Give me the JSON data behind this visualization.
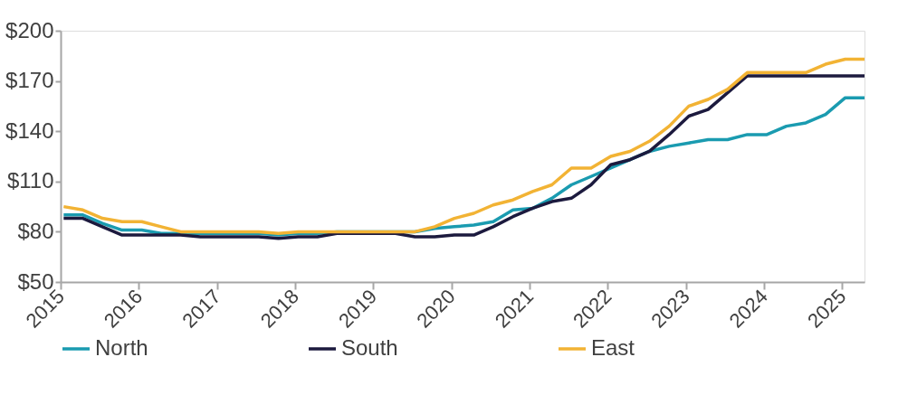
{
  "chart_data": {
    "type": "line",
    "x": [
      "2015-01-15",
      "2015-04-15",
      "2015-07-15",
      "2015-10-15",
      "2016-01-15",
      "2016-04-15",
      "2016-07-15",
      "2016-10-15",
      "2017-01-15",
      "2017-04-15",
      "2017-07-15",
      "2017-10-15",
      "2018-01-15",
      "2018-04-15",
      "2018-07-15",
      "2018-10-15",
      "2019-01-15",
      "2019-04-15",
      "2019-07-15",
      "2019-10-15",
      "2020-01-15",
      "2020-04-15",
      "2020-07-15",
      "2020-10-15",
      "2021-01-15",
      "2021-04-15",
      "2021-07-15",
      "2021-10-15",
      "2022-01-15",
      "2022-04-15",
      "2022-07-15",
      "2022-10-15",
      "2023-01-15",
      "2023-04-15",
      "2023-07-15",
      "2023-10-15",
      "2024-01-15",
      "2024-04-15",
      "2024-07-15",
      "2024-10-15",
      "2025-01-15",
      "2025-04-15"
    ],
    "series": [
      {
        "name": "North",
        "color": "#1a9bb0",
        "values": [
          90,
          90,
          85,
          81,
          81,
          79,
          79,
          79,
          79,
          79,
          79,
          78,
          79,
          79,
          80,
          80,
          80,
          80,
          80,
          82,
          83,
          84,
          86,
          93,
          94,
          100,
          108,
          113,
          118,
          123,
          128,
          131,
          133,
          135,
          135,
          138,
          138,
          143,
          145,
          150,
          160,
          160
        ]
      },
      {
        "name": "South",
        "color": "#1c1a3e",
        "values": [
          88,
          88,
          83,
          78,
          78,
          78,
          78,
          77,
          77,
          77,
          77,
          76,
          77,
          77,
          79,
          79,
          79,
          79,
          77,
          77,
          78,
          78,
          83,
          89,
          94,
          98,
          100,
          108,
          120,
          123,
          128,
          138,
          149,
          153,
          163,
          173,
          173,
          173,
          173,
          173,
          173,
          173
        ]
      },
      {
        "name": "East",
        "color": "#f2b334",
        "values": [
          95,
          93,
          88,
          86,
          86,
          83,
          80,
          80,
          80,
          80,
          80,
          79,
          80,
          80,
          80,
          80,
          80,
          80,
          80,
          83,
          88,
          91,
          96,
          99,
          104,
          108,
          118,
          118,
          125,
          128,
          134,
          143,
          155,
          159,
          165,
          175,
          175,
          175,
          175,
          180,
          183,
          183
        ]
      }
    ],
    "xlim": [
      "2015-01-01",
      "2025-04-15"
    ],
    "xticks": [
      "2015",
      "2016",
      "2017",
      "2018",
      "2019",
      "2020",
      "2021",
      "2022",
      "2023",
      "2024",
      "2025"
    ],
    "ylim": [
      50,
      200
    ],
    "yticks": [
      {
        "value": 50,
        "label": "$50"
      },
      {
        "value": 80,
        "label": "$80"
      },
      {
        "value": 110,
        "label": "$110"
      },
      {
        "value": 140,
        "label": "$140"
      },
      {
        "value": 170,
        "label": "$170"
      },
      {
        "value": 200,
        "label": "$200"
      }
    ],
    "grid": false,
    "legend": "bottom",
    "marker": "none",
    "line_style": "solid"
  }
}
